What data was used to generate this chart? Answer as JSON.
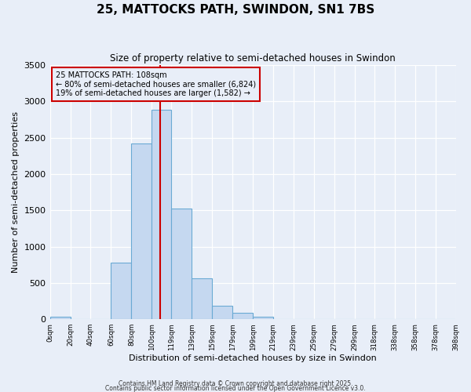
{
  "title_line1": "25, MATTOCKS PATH, SWINDON, SN1 7BS",
  "title_line2": "Size of property relative to semi-detached houses in Swindon",
  "xlabel": "Distribution of semi-detached houses by size in Swindon",
  "ylabel": "Number of semi-detached properties",
  "bar_edges": [
    0,
    20,
    40,
    60,
    80,
    100,
    119,
    139,
    159,
    179,
    199,
    219,
    239,
    259,
    279,
    299,
    318,
    338,
    358,
    378,
    398
  ],
  "bar_heights": [
    40,
    0,
    0,
    780,
    2420,
    2890,
    1530,
    560,
    190,
    90,
    35,
    5,
    0,
    0,
    0,
    0,
    0,
    0,
    0,
    0
  ],
  "bar_color": "#c5d8f0",
  "bar_edgecolor": "#6aaad4",
  "property_size": 108,
  "vline_color": "#cc0000",
  "annotation_title": "25 MATTOCKS PATH: 108sqm",
  "annotation_line2": "← 80% of semi-detached houses are smaller (6,824)",
  "annotation_line3": "19% of semi-detached houses are larger (1,582) →",
  "annotation_box_edgecolor": "#cc0000",
  "ylim": [
    0,
    3500
  ],
  "yticks": [
    0,
    500,
    1000,
    1500,
    2000,
    2500,
    3000,
    3500
  ],
  "bg_color": "#e8eef8",
  "footer_line1": "Contains HM Land Registry data © Crown copyright and database right 2025.",
  "footer_line2": "Contains public sector information licensed under the Open Government Licence v3.0.",
  "tick_labels": [
    "0sqm",
    "20sqm",
    "40sqm",
    "60sqm",
    "80sqm",
    "100sqm",
    "119sqm",
    "139sqm",
    "159sqm",
    "179sqm",
    "199sqm",
    "219sqm",
    "239sqm",
    "259sqm",
    "279sqm",
    "299sqm",
    "318sqm",
    "338sqm",
    "358sqm",
    "378sqm",
    "398sqm"
  ]
}
